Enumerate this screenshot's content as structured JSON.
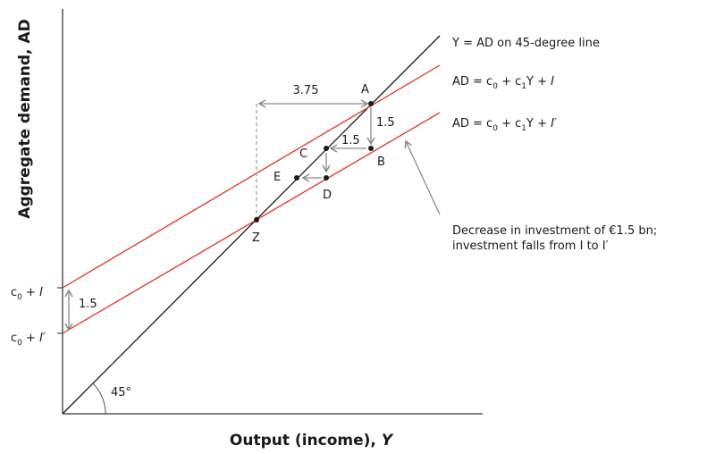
{
  "axes": {
    "y_title": "Aggregate demand, AD",
    "x_title_text": "Output (income), ",
    "x_title_var": "Y"
  },
  "colors": {
    "ad_line": "#e0301e",
    "line_45": "#1a1a1a",
    "arrow": "#8a8a8a"
  },
  "legend": {
    "line45": "Y = AD on 45-degree line",
    "ad1": {
      "a": "AD = c",
      "s0": "0",
      "b": " + c",
      "s1": "1",
      "c": "Y + ",
      "d": "I"
    },
    "ad2": {
      "a": "AD = c",
      "s0": "0",
      "b": " + c",
      "s1": "1",
      "c": "Y + ",
      "d": "I′"
    }
  },
  "intercepts": {
    "upper": {
      "a": "c",
      "s": "0",
      "b": " + ",
      "c": "I"
    },
    "lower": {
      "a": "c",
      "s": "0",
      "b": " + ",
      "c": "I′"
    },
    "gap": "1.5"
  },
  "points": {
    "A": "A",
    "B": "B",
    "C": "C",
    "D": "D",
    "E": "E",
    "Z": "Z"
  },
  "measures": {
    "horizontal": "3.75",
    "drop_AB": "1.5",
    "step_BC": "1.5"
  },
  "angle_label": "45°",
  "note": {
    "line1": "Decrease in investment of €1.5 bn;",
    "line2": "investment falls from I to I′"
  }
}
